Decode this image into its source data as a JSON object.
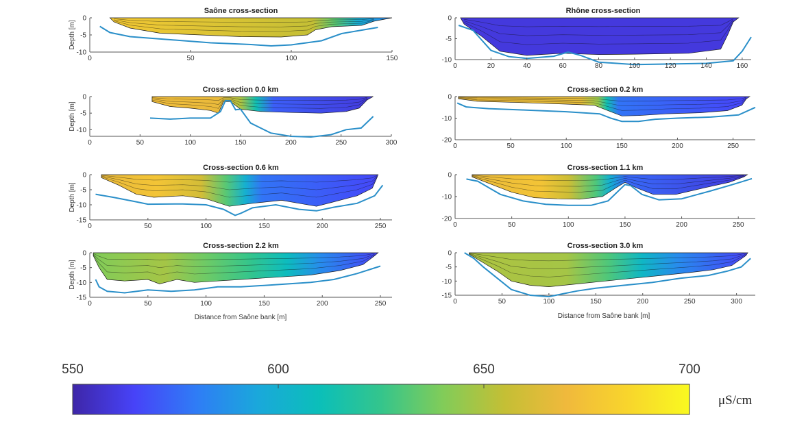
{
  "chart_data": [
    {
      "type": "area",
      "title": "Saône cross-section",
      "ylabel": "Depth [m]",
      "xlabel": "",
      "xlim": [
        0,
        150
      ],
      "ylim": [
        -10,
        0
      ],
      "xticks": [
        0,
        50,
        100,
        150
      ],
      "yticks": [
        0,
        -5,
        -10
      ],
      "water_x": [
        10,
        150
      ],
      "bed": [
        [
          5,
          -2.5
        ],
        [
          10,
          -4.3
        ],
        [
          20,
          -5.5
        ],
        [
          40,
          -6.4
        ],
        [
          60,
          -7.3
        ],
        [
          80,
          -7.8
        ],
        [
          90,
          -8.2
        ],
        [
          100,
          -7.9
        ],
        [
          115,
          -6.7
        ],
        [
          125,
          -4.6
        ],
        [
          135,
          -3.6
        ],
        [
          143,
          -2.8
        ]
      ],
      "body": [
        [
          12,
          -1.2
        ],
        [
          20,
          -3
        ],
        [
          35,
          -4.5
        ],
        [
          55,
          -5
        ],
        [
          75,
          -5.5
        ],
        [
          95,
          -5.6
        ],
        [
          108,
          -5
        ],
        [
          112,
          -3.5
        ],
        [
          120,
          -2.6
        ],
        [
          135,
          -2.2
        ],
        [
          141,
          -1
        ]
      ],
      "zones": [
        [
          0,
          678
        ],
        [
          0.72,
          655
        ],
        [
          0.8,
          632
        ],
        [
          0.88,
          598
        ],
        [
          1,
          583
        ]
      ]
    },
    {
      "type": "area",
      "title": "Rhône cross-section",
      "ylabel": "",
      "xlabel": "",
      "xlim": [
        0,
        165
      ],
      "ylim": [
        -10,
        0
      ],
      "xticks": [
        0,
        20,
        40,
        60,
        80,
        100,
        120,
        140,
        160
      ],
      "yticks": [
        0,
        -5,
        -10
      ],
      "water_x": [
        3,
        158
      ],
      "bed": [
        [
          2,
          -1.8
        ],
        [
          10,
          -3
        ],
        [
          20,
          -7.8
        ],
        [
          30,
          -9.3
        ],
        [
          40,
          -9.7
        ],
        [
          55,
          -9.2
        ],
        [
          63,
          -8.2
        ],
        [
          70,
          -9
        ],
        [
          80,
          -10.6
        ],
        [
          100,
          -11.2
        ],
        [
          140,
          -10.9
        ],
        [
          155,
          -10.3
        ],
        [
          160,
          -8
        ],
        [
          165,
          -4.6
        ]
      ],
      "body": [
        [
          5,
          -1.5
        ],
        [
          15,
          -4.5
        ],
        [
          25,
          -8
        ],
        [
          40,
          -9
        ],
        [
          60,
          -8.5
        ],
        [
          80,
          -8.8
        ],
        [
          100,
          -8.7
        ],
        [
          130,
          -8.5
        ],
        [
          148,
          -7.5
        ],
        [
          152,
          -4
        ],
        [
          155,
          -1
        ]
      ],
      "zones": [
        [
          0,
          560
        ],
        [
          1,
          560
        ]
      ]
    },
    {
      "type": "area",
      "title": "Cross-section 0.0 km",
      "ylabel": "Depth [m]",
      "xlabel": "",
      "xlim": [
        0,
        300
      ],
      "ylim": [
        -12,
        0
      ],
      "xticks": [
        0,
        50,
        100,
        150,
        200,
        250,
        300
      ],
      "yticks": [
        0,
        -5,
        -10
      ],
      "water_x": [
        62,
        282
      ],
      "bed": [
        [
          60,
          -6.5
        ],
        [
          80,
          -6.8
        ],
        [
          100,
          -6.5
        ],
        [
          120,
          -6.5
        ],
        [
          130,
          -4.5
        ],
        [
          135,
          -1.2
        ],
        [
          140,
          -1.3
        ],
        [
          145,
          -4
        ],
        [
          150,
          -3.8
        ],
        [
          160,
          -8
        ],
        [
          180,
          -11
        ],
        [
          200,
          -12
        ],
        [
          220,
          -12.2
        ],
        [
          240,
          -11.5
        ],
        [
          255,
          -10
        ],
        [
          270,
          -9.5
        ],
        [
          282,
          -6
        ]
      ],
      "body": [
        [
          62,
          -1.5
        ],
        [
          80,
          -3
        ],
        [
          100,
          -3.5
        ],
        [
          120,
          -4.2
        ],
        [
          128,
          -5
        ],
        [
          133,
          -1.5
        ],
        [
          140,
          -1.5
        ],
        [
          150,
          -3.8
        ],
        [
          170,
          -4.5
        ],
        [
          200,
          -4.8
        ],
        [
          230,
          -5
        ],
        [
          255,
          -4.5
        ],
        [
          268,
          -3.5
        ],
        [
          276,
          -1
        ]
      ],
      "zones": [
        [
          0,
          672
        ],
        [
          0.3,
          668
        ],
        [
          0.4,
          650
        ],
        [
          0.47,
          612
        ],
        [
          0.55,
          572
        ],
        [
          1,
          560
        ]
      ]
    },
    {
      "type": "area",
      "title": "Cross-section 0.2 km",
      "ylabel": "",
      "xlabel": "",
      "xlim": [
        0,
        270
      ],
      "ylim": [
        -20,
        0
      ],
      "xticks": [
        0,
        50,
        100,
        150,
        200,
        250
      ],
      "yticks": [
        0,
        -10,
        -20
      ],
      "water_x": [
        3,
        265
      ],
      "bed": [
        [
          2,
          -3
        ],
        [
          10,
          -4.8
        ],
        [
          30,
          -5.6
        ],
        [
          60,
          -6.2
        ],
        [
          100,
          -7
        ],
        [
          130,
          -8
        ],
        [
          140,
          -10
        ],
        [
          150,
          -11.5
        ],
        [
          165,
          -11.5
        ],
        [
          180,
          -10.5
        ],
        [
          200,
          -10
        ],
        [
          230,
          -9.5
        ],
        [
          255,
          -8.5
        ],
        [
          270,
          -5
        ]
      ],
      "body": [
        [
          3,
          -1
        ],
        [
          20,
          -2.2
        ],
        [
          60,
          -2.8
        ],
        [
          100,
          -3.5
        ],
        [
          125,
          -4
        ],
        [
          140,
          -7
        ],
        [
          150,
          -9
        ],
        [
          165,
          -8.8
        ],
        [
          190,
          -8
        ],
        [
          220,
          -7.5
        ],
        [
          245,
          -6.5
        ],
        [
          258,
          -4
        ],
        [
          262,
          -1
        ]
      ],
      "zones": [
        [
          0,
          672
        ],
        [
          0.42,
          666
        ],
        [
          0.48,
          645
        ],
        [
          0.51,
          612
        ],
        [
          0.55,
          578
        ],
        [
          1,
          565
        ]
      ]
    },
    {
      "type": "area",
      "title": "Cross-section 0.6 km",
      "ylabel": "Depth [m]",
      "xlabel": "",
      "xlim": [
        0,
        260
      ],
      "ylim": [
        -15,
        0
      ],
      "xticks": [
        0,
        50,
        100,
        150,
        200,
        250
      ],
      "yticks": [
        0,
        -5,
        -10,
        -15
      ],
      "water_x": [
        10,
        248
      ],
      "bed": [
        [
          5,
          -6.5
        ],
        [
          20,
          -7.5
        ],
        [
          40,
          -9
        ],
        [
          50,
          -9.8
        ],
        [
          80,
          -9.7
        ],
        [
          100,
          -10
        ],
        [
          115,
          -11.5
        ],
        [
          125,
          -13.5
        ],
        [
          130,
          -12.8
        ],
        [
          140,
          -11
        ],
        [
          160,
          -10
        ],
        [
          180,
          -11.5
        ],
        [
          195,
          -12
        ],
        [
          210,
          -10.8
        ],
        [
          230,
          -9.5
        ],
        [
          245,
          -7
        ],
        [
          252,
          -3.5
        ]
      ],
      "body": [
        [
          10,
          -1
        ],
        [
          25,
          -3.5
        ],
        [
          40,
          -6.5
        ],
        [
          55,
          -7.5
        ],
        [
          80,
          -7
        ],
        [
          100,
          -8
        ],
        [
          120,
          -10.5
        ],
        [
          140,
          -9.5
        ],
        [
          165,
          -8.5
        ],
        [
          180,
          -9.5
        ],
        [
          195,
          -10.5
        ],
        [
          210,
          -9
        ],
        [
          230,
          -7
        ],
        [
          243,
          -4.5
        ],
        [
          247,
          -1
        ]
      ],
      "zones": [
        [
          0,
          668
        ],
        [
          0.2,
          676
        ],
        [
          0.36,
          660
        ],
        [
          0.45,
          632
        ],
        [
          0.52,
          600
        ],
        [
          0.58,
          578
        ],
        [
          1,
          566
        ]
      ]
    },
    {
      "type": "area",
      "title": "Cross-section 1.1 km",
      "ylabel": "",
      "xlabel": "",
      "xlim": [
        0,
        265
      ],
      "ylim": [
        -20,
        0
      ],
      "xticks": [
        0,
        50,
        100,
        150,
        200,
        250
      ],
      "yticks": [
        0,
        -10,
        -20
      ],
      "water_x": [
        15,
        258
      ],
      "bed": [
        [
          10,
          -2
        ],
        [
          20,
          -3
        ],
        [
          30,
          -6
        ],
        [
          40,
          -9
        ],
        [
          60,
          -12
        ],
        [
          80,
          -13.5
        ],
        [
          100,
          -14
        ],
        [
          120,
          -14
        ],
        [
          135,
          -12
        ],
        [
          145,
          -7
        ],
        [
          150,
          -4.5
        ],
        [
          155,
          -5
        ],
        [
          165,
          -9
        ],
        [
          180,
          -11.5
        ],
        [
          200,
          -11
        ],
        [
          225,
          -7.5
        ],
        [
          245,
          -4.5
        ],
        [
          262,
          -1.8
        ]
      ],
      "body": [
        [
          15,
          -1
        ],
        [
          30,
          -4
        ],
        [
          50,
          -8
        ],
        [
          70,
          -10.5
        ],
        [
          90,
          -11
        ],
        [
          110,
          -11.2
        ],
        [
          130,
          -10
        ],
        [
          142,
          -6
        ],
        [
          150,
          -3.5
        ],
        [
          160,
          -6
        ],
        [
          175,
          -9
        ],
        [
          195,
          -9
        ],
        [
          220,
          -6
        ],
        [
          242,
          -3.5
        ],
        [
          255,
          -1
        ]
      ],
      "zones": [
        [
          0,
          668
        ],
        [
          0.25,
          676
        ],
        [
          0.35,
          658
        ],
        [
          0.45,
          630
        ],
        [
          0.5,
          600
        ],
        [
          0.56,
          575
        ],
        [
          1,
          560
        ]
      ]
    },
    {
      "type": "area",
      "title": "Cross-section 2.2 km",
      "ylabel": "Depth [m]",
      "xlabel": "Distance from Saône bank [m]",
      "xlim": [
        0,
        260
      ],
      "ylim": [
        -15,
        0
      ],
      "xticks": [
        0,
        50,
        100,
        150,
        200,
        250
      ],
      "yticks": [
        0,
        -5,
        -10,
        -15
      ],
      "water_x": [
        3,
        248
      ],
      "bed": [
        [
          5,
          -9
        ],
        [
          8,
          -11.5
        ],
        [
          15,
          -13
        ],
        [
          30,
          -13.5
        ],
        [
          50,
          -12.5
        ],
        [
          70,
          -13
        ],
        [
          90,
          -12.5
        ],
        [
          110,
          -11.5
        ],
        [
          130,
          -11.5
        ],
        [
          150,
          -11
        ],
        [
          170,
          -10.5
        ],
        [
          190,
          -10
        ],
        [
          210,
          -9
        ],
        [
          230,
          -7
        ],
        [
          250,
          -4.5
        ]
      ],
      "body": [
        [
          3,
          -1
        ],
        [
          8,
          -5
        ],
        [
          15,
          -9
        ],
        [
          30,
          -9.5
        ],
        [
          50,
          -9
        ],
        [
          60,
          -10.5
        ],
        [
          75,
          -9
        ],
        [
          90,
          -10
        ],
        [
          110,
          -9.5
        ],
        [
          130,
          -9
        ],
        [
          150,
          -8.5
        ],
        [
          170,
          -8
        ],
        [
          190,
          -7.5
        ],
        [
          215,
          -6
        ],
        [
          235,
          -4
        ],
        [
          245,
          -1
        ]
      ],
      "zones": [
        [
          0,
          640
        ],
        [
          0.25,
          648
        ],
        [
          0.4,
          636
        ],
        [
          0.55,
          625
        ],
        [
          0.68,
          608
        ],
        [
          0.8,
          585
        ],
        [
          1,
          565
        ]
      ]
    },
    {
      "type": "area",
      "title": "Cross-section 3.0 km",
      "ylabel": "",
      "xlabel": "Distance from Saône bank [m]",
      "xlim": [
        0,
        320
      ],
      "ylim": [
        -15,
        0
      ],
      "xticks": [
        0,
        50,
        100,
        150,
        200,
        250,
        300
      ],
      "yticks": [
        0,
        -5,
        -10,
        -15
      ],
      "water_x": [
        15,
        312
      ],
      "bed": [
        [
          10,
          0
        ],
        [
          20,
          -2
        ],
        [
          30,
          -5
        ],
        [
          45,
          -9
        ],
        [
          60,
          -13
        ],
        [
          80,
          -15
        ],
        [
          100,
          -15.5
        ],
        [
          115,
          -14.5
        ],
        [
          130,
          -13.5
        ],
        [
          150,
          -12.5
        ],
        [
          180,
          -11.5
        ],
        [
          210,
          -10.5
        ],
        [
          240,
          -9
        ],
        [
          270,
          -8
        ],
        [
          290,
          -6.5
        ],
        [
          305,
          -5
        ],
        [
          315,
          -2
        ]
      ],
      "body": [
        [
          15,
          -0.5
        ],
        [
          30,
          -3.5
        ],
        [
          45,
          -6.5
        ],
        [
          60,
          -10
        ],
        [
          80,
          -11.5
        ],
        [
          100,
          -12
        ],
        [
          130,
          -11
        ],
        [
          160,
          -10
        ],
        [
          190,
          -9
        ],
        [
          220,
          -8
        ],
        [
          250,
          -7
        ],
        [
          275,
          -6
        ],
        [
          295,
          -4.5
        ],
        [
          310,
          -1
        ]
      ],
      "zones": [
        [
          0,
          650
        ],
        [
          0.35,
          648
        ],
        [
          0.5,
          630
        ],
        [
          0.62,
          605
        ],
        [
          0.75,
          585
        ],
        [
          1,
          565
        ]
      ]
    }
  ],
  "colorbar": {
    "min": 550,
    "max": 700,
    "ticks": [
      "550",
      "600",
      "650",
      "700"
    ],
    "tick_values": [
      550,
      600,
      650,
      700
    ],
    "unit": "μS/cm",
    "colormap": [
      "#3e26a8",
      "#4743f8",
      "#2f7cf6",
      "#1aa8db",
      "#0bbfb9",
      "#34c58c",
      "#81cc59",
      "#c4bf35",
      "#f0b93c",
      "#f8d52c",
      "#f9f920"
    ]
  }
}
